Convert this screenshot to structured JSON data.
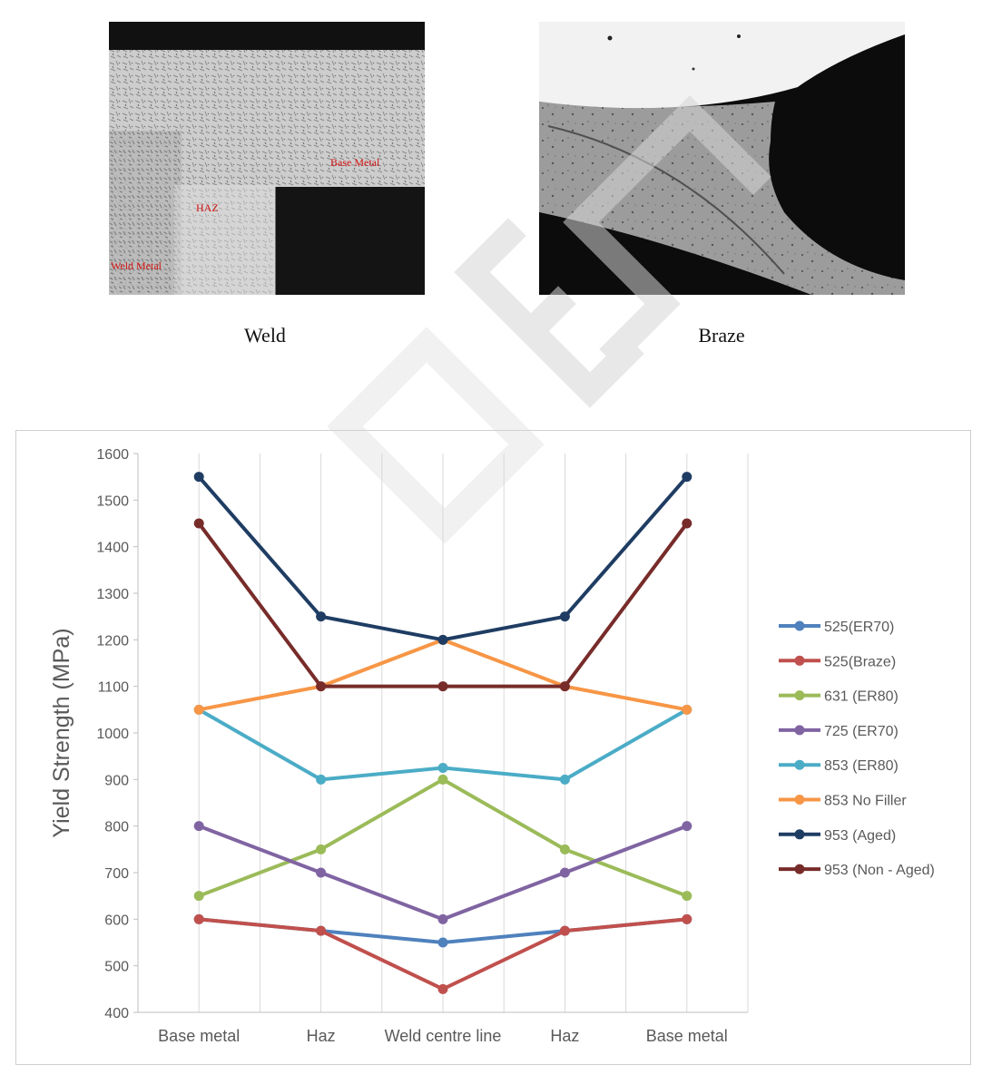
{
  "images": {
    "weld": {
      "caption": "Weld",
      "labels": {
        "base_metal": "Base Metal",
        "haz": "HAZ",
        "weld_metal": "Weld Metal"
      }
    },
    "braze": {
      "caption": "Braze"
    }
  },
  "chart_data": {
    "type": "line",
    "ylabel": "Yield Strength (MPa)",
    "xlabel": "",
    "categories": [
      "Base metal",
      "Haz",
      "Weld centre line",
      "Haz",
      "Base metal"
    ],
    "ylim": [
      400,
      1600
    ],
    "yticks": [
      400,
      500,
      600,
      700,
      800,
      900,
      1000,
      1100,
      1200,
      1300,
      1400,
      1500,
      1600
    ],
    "grid": "vertical",
    "legend": "right",
    "series": [
      {
        "name": "525(ER70)",
        "color": "#4f81bd",
        "values": [
          600,
          575,
          550,
          575,
          600
        ]
      },
      {
        "name": "525(Braze)",
        "color": "#c0504d",
        "values": [
          600,
          575,
          450,
          575,
          600
        ]
      },
      {
        "name": "631 (ER80)",
        "color": "#9bbb59",
        "values": [
          650,
          750,
          900,
          750,
          650
        ]
      },
      {
        "name": "725 (ER70)",
        "color": "#8064a2",
        "values": [
          800,
          700,
          600,
          700,
          800
        ]
      },
      {
        "name": "853 (ER80)",
        "color": "#4bacc6",
        "values": [
          1050,
          900,
          925,
          900,
          1050
        ]
      },
      {
        "name": "853 No Filler",
        "color": "#f79646",
        "values": [
          1050,
          1100,
          1200,
          1100,
          1050
        ]
      },
      {
        "name": "953 (Aged)",
        "color": "#1f3d63",
        "values": [
          1550,
          1250,
          1200,
          1250,
          1550
        ]
      },
      {
        "name": "953 (Non - Aged)",
        "color": "#772c2a",
        "values": [
          1450,
          1100,
          1100,
          1100,
          1450
        ]
      }
    ]
  }
}
